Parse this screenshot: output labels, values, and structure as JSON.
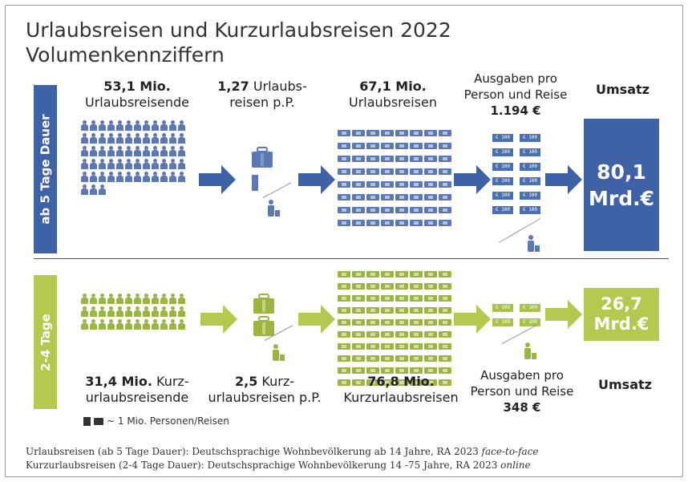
{
  "title": {
    "line1": "Urlaubsreisen und Kurzurlaubsreisen 2022",
    "line2": "Volumenkennziffern"
  },
  "colors": {
    "blue": "#3f62a7",
    "green": "#b3c94f",
    "blue_icon": "#5b78b5",
    "green_icon": "#9bb442"
  },
  "icons": {
    "traveler": "person-icon",
    "trip": "suitcase-icon",
    "money": "banknote-icon",
    "flow": "arrow-right-icon"
  },
  "long": {
    "band_label": "ab 5 Tage Dauer",
    "travellers_value": "53,1 Mio.",
    "travellers_label": "Urlaubsreisende",
    "trips_pp_value": "1,27",
    "trips_pp_label_a": "Urlaubs-",
    "trips_pp_label_b": "reisen p.P.",
    "trips_value": "67,1 Mio.",
    "trips_label": "Urlaubsreisen",
    "spend_label_a": "Ausgaben pro",
    "spend_label_b": "Person und Reise",
    "spend_value": "1.194 €",
    "revenue_label": "Umsatz",
    "revenue_value_a": "80,1",
    "revenue_value_b": "Mrd.€",
    "note_text": "€ 100"
  },
  "short": {
    "band_label": "2-4 Tage",
    "travellers_value": "31,4 Mio.",
    "travellers_label_a": "Kurz-",
    "travellers_label_b": "urlaubsreisende",
    "trips_pp_value": "2,5",
    "trips_pp_label_a": "Kurz-",
    "trips_pp_label_b": "urlaubsreisen p.P.",
    "trips_value": "76,8 Mio.",
    "trips_label": "Kurzurlaubsreisen",
    "spend_label_a": "Ausgaben pro",
    "spend_label_b": "Person und Reise",
    "spend_value": "348 €",
    "revenue_label": "Umsatz",
    "revenue_value_a": "26,7",
    "revenue_value_b": "Mrd.€",
    "note_text": "€ 100"
  },
  "legend": {
    "text": "~ 1 Mio. Personen/Reisen"
  },
  "footnotes": {
    "line1_main": "Urlaubsreisen (ab 5 Tage Dauer): Deutschsprachige Wohnbevölkerung ab 14 Jahre, RA 2023 ",
    "line1_italic": "face-to-face",
    "line2_main": "Kurzurlaubsreisen (2-4 Tage Dauer): Deutschsprachige Wohnbevölkerung 14 -75 Jahre, RA 2023 ",
    "line2_italic": "online"
  }
}
